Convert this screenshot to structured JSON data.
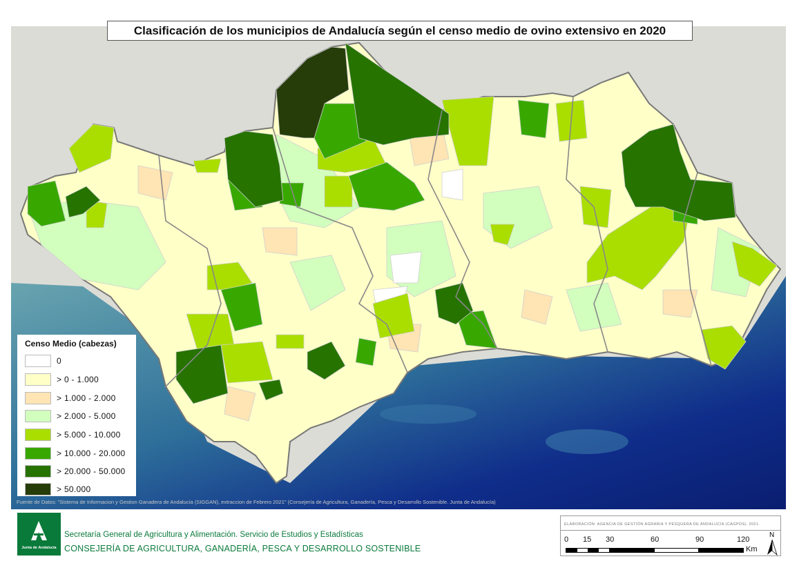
{
  "title": "Clasificación de los municipios de Andalucía según el censo medio de ovino extensivo en 2020",
  "legend": {
    "title": "Censo Medio (cabezas)",
    "classes": [
      {
        "label": "0",
        "color": "#ffffff"
      },
      {
        "label": "> 0 - 1.000",
        "color": "#ffffc8"
      },
      {
        "label": "> 1.000 - 2.000",
        "color": "#ffe4b4"
      },
      {
        "label": "> 2.000 - 5.000",
        "color": "#d2ffbe"
      },
      {
        "label": "> 5.000 - 10.000",
        "color": "#aade00"
      },
      {
        "label": "> 10.000 - 20.000",
        "color": "#38a800"
      },
      {
        "label": "> 20.000 - 50.000",
        "color": "#267300"
      },
      {
        "label": "> 50.000",
        "color": "#263d0a"
      }
    ]
  },
  "source": "Fuente de Datos: \"Sistema de Informacion y Gestion Ganadera de Andalucía (SIGGAN), extraccion de Febrero 2021\" (Consejería de Agricultura, Ganadería, Pesca y Desarrollo Sostenible. Junta de Andalucía)",
  "footer": {
    "logo_text": "Junta de Andalucía",
    "org_line1": "Secretaría General de Agricultura y Alimentación. Servicio de Estudios y Estadísticas",
    "org_line2": "CONSEJERÍA DE AGRICULTURA, GANADERÍA, PESCA Y DESARROLLO SOSTENIBLE"
  },
  "scale": {
    "credit": "ELABORACIÓN: AGENCIA DE GESTIÓN AGRARIA Y PESQUERA DE ANDALUCÍA (CAGPDS). 2021.",
    "ticks": [
      "0",
      "15",
      "30",
      "60",
      "90",
      "120"
    ],
    "unit": "Km",
    "north": "N"
  }
}
